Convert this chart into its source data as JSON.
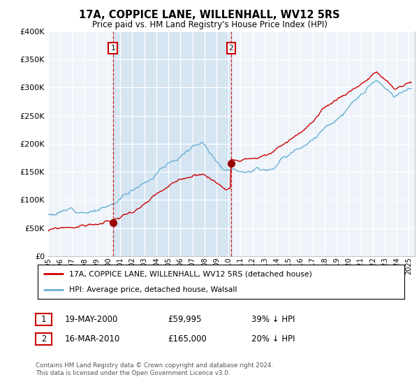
{
  "title": "17A, COPPICE LANE, WILLENHALL, WV12 5RS",
  "subtitle": "Price paid vs. HM Land Registry's House Price Index (HPI)",
  "legend_line1": "17A, COPPICE LANE, WILLENHALL, WV12 5RS (detached house)",
  "legend_line2": "HPI: Average price, detached house, Walsall",
  "transaction1_date": "19-MAY-2000",
  "transaction1_price": "£59,995",
  "transaction1_hpi": "39% ↓ HPI",
  "transaction1_year": 2000.38,
  "transaction1_value": 59995,
  "transaction2_date": "16-MAR-2010",
  "transaction2_price": "£165,000",
  "transaction2_hpi": "20% ↓ HPI",
  "transaction2_year": 2010.21,
  "transaction2_value": 165000,
  "hpi_color": "#6aafd6",
  "price_color": "#cc0000",
  "marker_color": "#990000",
  "vline_color": "#cc0000",
  "shade_color": "#cce0f0",
  "plot_bg": "#eef4fa",
  "footer": "Contains HM Land Registry data © Crown copyright and database right 2024.\nThis data is licensed under the Open Government Licence v3.0.",
  "ylim": [
    0,
    400000
  ],
  "yticks": [
    0,
    50000,
    100000,
    150000,
    200000,
    250000,
    300000,
    350000,
    400000
  ],
  "xlim_start": 1995,
  "xlim_end": 2025.5,
  "hpi_seed": 12,
  "red_seed": 99
}
